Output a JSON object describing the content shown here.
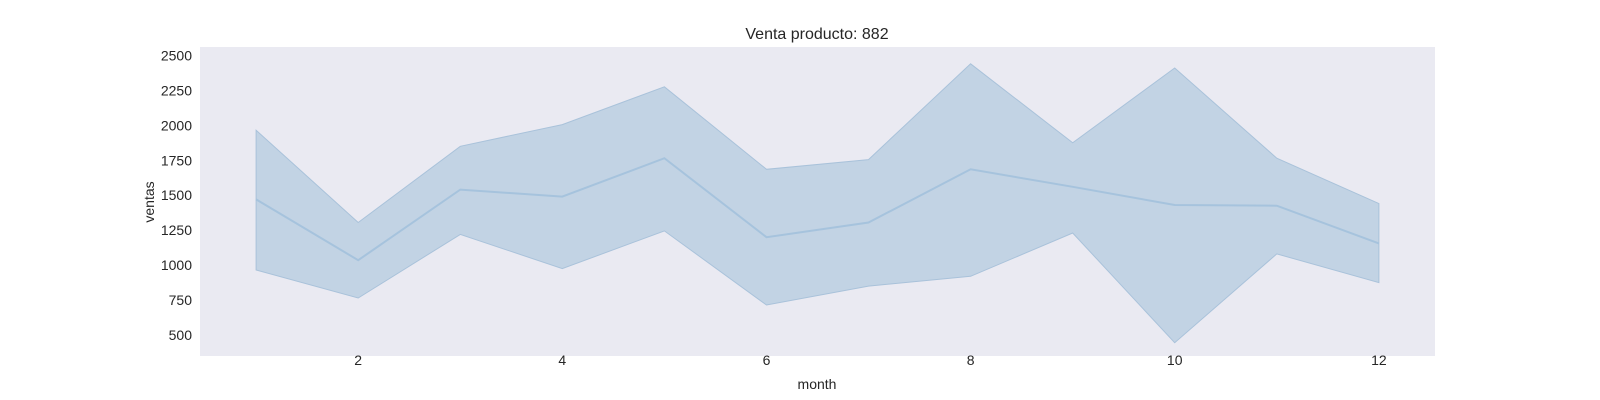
{
  "chart_data": {
    "type": "area",
    "title": "Venta producto: 882",
    "xlabel": "month",
    "ylabel": "ventas",
    "xlim": [
      0.45,
      12.55
    ],
    "ylim": [
      350,
      2560
    ],
    "xticks": [
      2,
      4,
      6,
      8,
      10,
      12
    ],
    "yticks": [
      500,
      750,
      1000,
      1250,
      1500,
      1750,
      2000,
      2250,
      2500
    ],
    "grid": false,
    "background": "#eaeaf2",
    "colors": {
      "line": "#a6c3dd",
      "band": "#c2d3e4",
      "band_edge": "#a9c2da"
    },
    "series": [
      {
        "x": [
          1,
          2,
          3,
          4,
          5,
          6,
          7,
          8,
          9,
          10,
          11,
          12
        ],
        "mean": [
          1470,
          1035,
          1540,
          1490,
          1765,
          1200,
          1305,
          1685,
          1560,
          1430,
          1425,
          1155
        ],
        "upper": [
          1965,
          1305,
          1850,
          2005,
          2275,
          1685,
          1755,
          2440,
          1875,
          2410,
          1765,
          1440
        ],
        "lower": [
          965,
          765,
          1220,
          975,
          1245,
          715,
          850,
          920,
          1230,
          445,
          1080,
          875
        ]
      }
    ]
  }
}
